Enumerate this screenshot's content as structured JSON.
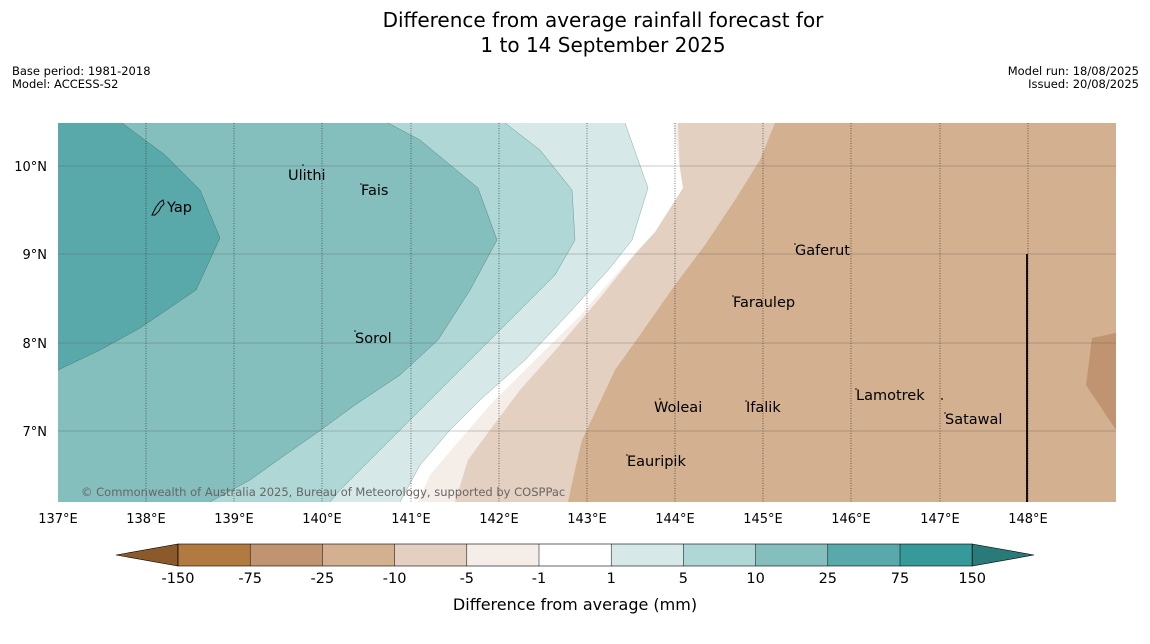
{
  "header": {
    "title_line1": "Difference from average rainfall forecast for",
    "title_line2": "1 to 14 September 2025",
    "base_period": "Base period: 1981-2018",
    "model": "Model: ACCESS-S2",
    "model_run": "Model run: 18/08/2025",
    "issued": "Issued: 20/08/2025"
  },
  "map": {
    "lat_labels": [
      "10°N",
      "9°N",
      "8°N",
      "7°N"
    ],
    "lon_labels": [
      "137°E",
      "138°E",
      "139°E",
      "140°E",
      "141°E",
      "142°E",
      "143°E",
      "144°E",
      "145°E",
      "146°E",
      "147°E",
      "148°E"
    ],
    "places": [
      {
        "name": "Ulithi"
      },
      {
        "name": "Fais"
      },
      {
        "name": "Yap"
      },
      {
        "name": "Gaferut"
      },
      {
        "name": "Faraulep"
      },
      {
        "name": "Sorol"
      },
      {
        "name": "Lamotrek"
      },
      {
        "name": "Woleai"
      },
      {
        "name": "Ifalik"
      },
      {
        "name": "Satawal"
      },
      {
        "name": "Eauripik"
      }
    ],
    "copyright": "© Commonwealth of Australia 2025, Bureau of Meteorology, supported by COSPPac"
  },
  "legend": {
    "title": "Difference from average (mm)",
    "ticks": [
      "-150",
      "-75",
      "-25",
      "-10",
      "-5",
      "-1",
      "1",
      "5",
      "10",
      "25",
      "75",
      "150"
    ],
    "colors": [
      "#8c5a2a",
      "#b07a40",
      "#c09470",
      "#d2b090",
      "#e3d0c0",
      "#f4ede8",
      "#ffffff",
      "#d6e9e8",
      "#afd7d6",
      "#84bfbe",
      "#5aa9aa",
      "#359a99",
      "#2a7a79"
    ]
  },
  "colors": {
    "brown_strong": "#c09470",
    "brown_medium": "#d2b090",
    "brown_light": "#e3d0c0",
    "brown_pale": "#f4ede8",
    "teal_pale": "#d6e9e8",
    "teal_light": "#afd7d6",
    "teal_medium": "#84bfbe",
    "teal_strong": "#5aa9aa"
  }
}
